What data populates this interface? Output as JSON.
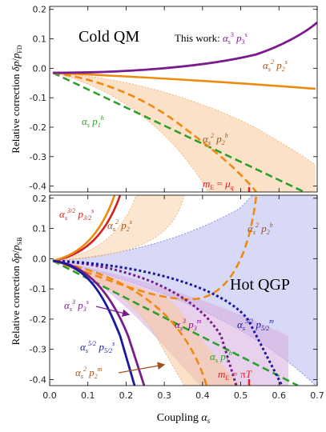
{
  "chart_data": [
    {
      "type": "line",
      "panel": "top",
      "title": "Cold QM",
      "ylabel": "Relative correction δp/p_FD",
      "xlim": [
        0,
        0.7
      ],
      "ylim": [
        -0.42,
        0.21
      ],
      "yticks": [
        "0.2",
        "0.1",
        "0.0",
        "-0.1",
        "-0.2",
        "-0.3",
        "-0.4"
      ],
      "annotations": [
        "This work: α_s^3 p_3^s",
        "α_s^2 p_2^s",
        "α_s p_1^h",
        "α_s^2 p_2^h",
        "m_E = μ_q"
      ],
      "vline_x": 0.52,
      "series": [
        {
          "name": "α_s^3 p_3^s",
          "color": "#7a1c8c",
          "style": "solid",
          "x": [
            0,
            0.1,
            0.2,
            0.3,
            0.4,
            0.5,
            0.6,
            0.7
          ],
          "y": [
            0,
            0.0015,
            0.008,
            0.025,
            0.06,
            0.097,
            0.135,
            0.175
          ]
        },
        {
          "name": "α_s^2 p_2^s",
          "color": "#ef8a10",
          "style": "solid",
          "x": [
            0,
            0.1,
            0.2,
            0.3,
            0.4,
            0.5,
            0.6,
            0.7
          ],
          "y": [
            0,
            -0.005,
            -0.012,
            -0.02,
            -0.027,
            -0.033,
            -0.04,
            -0.046
          ]
        },
        {
          "name": "α_s p_1^h",
          "color": "#2ca02c",
          "style": "dashed",
          "x": [
            0,
            0.1,
            0.2,
            0.3,
            0.4,
            0.5,
            0.6,
            0.65
          ],
          "y": [
            0,
            -0.066,
            -0.133,
            -0.2,
            -0.265,
            -0.33,
            -0.395,
            -0.42
          ]
        },
        {
          "name": "α_s^2 p_2^h",
          "color": "#ef8a10",
          "style": "dashed",
          "x": [
            0,
            0.1,
            0.2,
            0.3,
            0.4,
            0.5,
            0.55
          ],
          "y": [
            0,
            -0.02,
            -0.065,
            -0.145,
            -0.245,
            -0.37,
            -0.42
          ]
        },
        {
          "name": "band α_s^2 p_2^h upper",
          "color": "#f2b97a",
          "style": "dotted",
          "x": [
            0,
            0.2,
            0.4,
            0.6,
            0.7
          ],
          "y": [
            0,
            -0.03,
            -0.1,
            -0.225,
            -0.3
          ]
        },
        {
          "name": "band α_s^2 p_2^h lower",
          "color": "#f2b97a",
          "style": "dotted",
          "x": [
            0,
            0.1,
            0.2,
            0.3,
            0.4,
            0.44
          ],
          "y": [
            0,
            -0.05,
            -0.14,
            -0.25,
            -0.37,
            -0.42
          ]
        }
      ]
    },
    {
      "type": "line",
      "panel": "bottom",
      "title": "Hot QGP",
      "ylabel": "Relative correction δp/p_SB",
      "xlabel": "Coupling α_s",
      "xlim": [
        0,
        0.7
      ],
      "ylim": [
        -0.42,
        0.21
      ],
      "xticks": [
        "0.0",
        "0.1",
        "0.2",
        "0.3",
        "0.4",
        "0.5",
        "0.6",
        "0.7"
      ],
      "yticks": [
        "0.2",
        "0.1",
        "0.0",
        "-0.1",
        "-0.2",
        "-0.3",
        "-0.4"
      ],
      "annotations": [
        "α_s^{3/2} p_{3/2}^s",
        "α_s^2 p_2^s",
        "α_s^2 p_2^h",
        "α_s^3 p_3^s",
        "α_s^3 p_3^m",
        "α_s^{5/2} p_{5/2}^m",
        "α_s^{5/2} p_{5/2}^s",
        "α_s p_1^h",
        "α_s^2 p_2^m",
        "m_E = πT"
      ],
      "vline_x": 0.52,
      "series": [
        {
          "name": "α_s^{3/2} p_{3/2}^s",
          "color": "#d62020",
          "style": "solid",
          "x": [
            0,
            0.05,
            0.1,
            0.15,
            0.17
          ],
          "y": [
            0,
            0.02,
            0.075,
            0.165,
            0.21
          ]
        },
        {
          "name": "α_s^2 p_2^s",
          "color": "#ef8a10",
          "style": "solid",
          "x": [
            0,
            0.05,
            0.1,
            0.15,
            0.16
          ],
          "y": [
            0,
            0.023,
            0.08,
            0.18,
            0.21
          ]
        },
        {
          "name": "α_s^3 p_3^s",
          "color": "#7a1c8c",
          "style": "solid",
          "x": [
            0,
            0.05,
            0.1,
            0.15,
            0.2,
            0.23
          ],
          "y": [
            0,
            -0.01,
            -0.06,
            -0.16,
            -0.32,
            -0.42
          ]
        },
        {
          "name": "α_s^{5/2} p_{5/2}^s",
          "color": "#1a1a9c",
          "style": "solid",
          "x": [
            0,
            0.05,
            0.1,
            0.15,
            0.18,
            0.2
          ],
          "y": [
            0,
            -0.012,
            -0.07,
            -0.19,
            -0.3,
            -0.42
          ]
        },
        {
          "name": "α_s p_1^h",
          "color": "#2ca02c",
          "style": "dashed",
          "x": [
            0,
            0.1,
            0.2,
            0.3,
            0.4,
            0.5,
            0.6,
            0.64
          ],
          "y": [
            0,
            -0.067,
            -0.133,
            -0.2,
            -0.267,
            -0.333,
            -0.4,
            -0.42
          ]
        },
        {
          "name": "α_s^2 p_2^m",
          "color": "#ef8a10",
          "style": "dashed",
          "x": [
            0,
            0.1,
            0.2,
            0.25,
            0.28
          ],
          "y": [
            0,
            -0.05,
            -0.2,
            -0.32,
            -0.42
          ]
        },
        {
          "name": "α_s^2 p_2^h",
          "color": "#ef8a10",
          "style": "dashed",
          "x": [
            0,
            0.1,
            0.2,
            0.3,
            0.4,
            0.5,
            0.55
          ],
          "y": [
            0,
            -0.045,
            -0.11,
            -0.13,
            -0.07,
            0.07,
            0.21
          ]
        },
        {
          "name": "α_s^3 p_3^m",
          "color": "#7a1c8c",
          "style": "dotted",
          "x": [
            0,
            0.1,
            0.2,
            0.3,
            0.35,
            0.4
          ],
          "y": [
            0,
            -0.01,
            -0.08,
            -0.22,
            -0.32,
            -0.42
          ]
        },
        {
          "name": "α_s^{5/2} p_{5/2}^m",
          "color": "#1a1a9c",
          "style": "dotted",
          "x": [
            0,
            0.1,
            0.2,
            0.3,
            0.4,
            0.5,
            0.55
          ],
          "y": [
            0,
            -0.005,
            -0.04,
            -0.11,
            -0.21,
            -0.34,
            -0.42
          ]
        },
        {
          "name": "band α_s^{5/2} p_{5/2}^m upper",
          "color": "#8f8fd9",
          "style": "dotted",
          "x": [
            0,
            0.1,
            0.2,
            0.3,
            0.4
          ],
          "y": [
            0,
            0.005,
            0.04,
            0.11,
            0.21
          ]
        },
        {
          "name": "band α_s^{5/2} p_{5/2}^m lower",
          "color": "#8f8fd9",
          "style": "dotted",
          "x": [
            0,
            0.2,
            0.4,
            0.6,
            0.7
          ],
          "y": [
            0,
            -0.025,
            -0.1,
            -0.23,
            -0.32
          ]
        },
        {
          "name": "band α_s^3 p_3^m",
          "color": "#c080d0",
          "style": "dotted",
          "x": [
            0,
            0.2,
            0.4,
            0.6
          ],
          "y": [
            0,
            -0.05,
            -0.16,
            -0.28
          ]
        },
        {
          "name": "band α_s^2 p_2^h lower",
          "color": "#f2b97a",
          "style": "dotted",
          "x": [
            0,
            0.1,
            0.2,
            0.3,
            0.35
          ],
          "y": [
            0,
            -0.08,
            -0.2,
            -0.35,
            -0.42
          ]
        }
      ]
    }
  ],
  "colors": {
    "purple": "#7a1c8c",
    "orange": "#ef8a10",
    "green": "#2ca02c",
    "red": "#d62020",
    "navy": "#1a1a9c",
    "orange_band": "#f7c99a",
    "blue_band": "#b8b8f0",
    "purple_band": "#d9b3e0",
    "marker_red": "#e0202a"
  }
}
